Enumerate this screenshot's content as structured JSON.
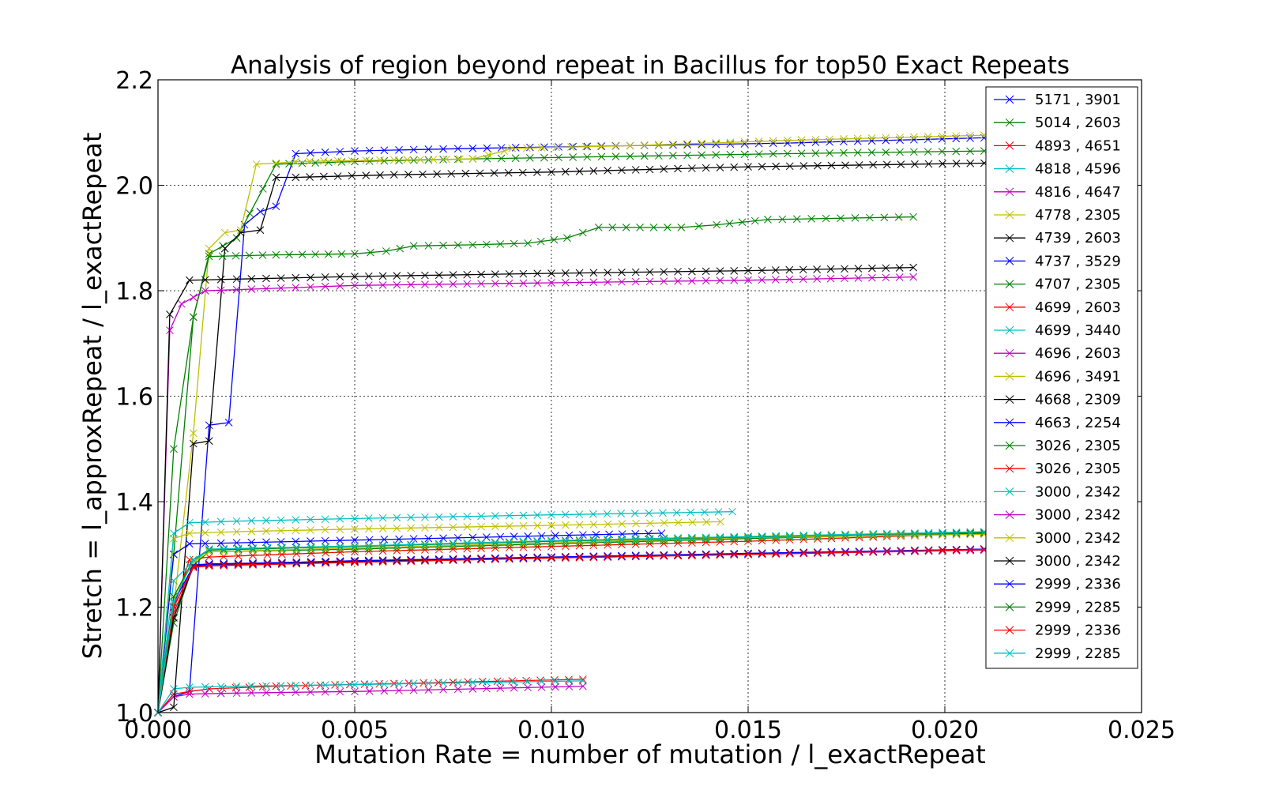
{
  "chart_data": {
    "type": "line",
    "title": "Analysis of region beyond repeat in Bacillus for top50 Exact Repeats",
    "xlabel": "Mutation Rate = number of mutation / l_exactRepeat",
    "ylabel": "Stretch =  l_approxRepeat / l_exactRepeat",
    "xlim": [
      0.0,
      0.025
    ],
    "ylim": [
      1.0,
      2.2
    ],
    "xticks": [
      "0.000",
      "0.005",
      "0.010",
      "0.015",
      "0.020",
      "0.025"
    ],
    "yticks": [
      "1.0",
      "1.2",
      "1.4",
      "1.6",
      "1.8",
      "2.0",
      "2.2"
    ],
    "grid": true,
    "legend_position": "right",
    "marker": "x",
    "series": [
      {
        "name": "5171 , 3901",
        "color": "#0000ff",
        "x": [
          0,
          0.0004,
          0.0008,
          0.0013,
          0.0018,
          0.0022,
          0.0026,
          0.003,
          0.0035,
          0.005,
          0.008,
          0.012,
          0.016,
          0.021
        ],
        "y": [
          1.0,
          1.03,
          1.04,
          1.545,
          1.55,
          1.925,
          1.95,
          1.96,
          2.06,
          2.065,
          2.07,
          2.075,
          2.08,
          2.09
        ]
      },
      {
        "name": "5014 , 2603",
        "color": "#008000",
        "x": [
          0,
          0.0004,
          0.0009,
          0.0013,
          0.002,
          0.003,
          0.005,
          0.008,
          0.012,
          0.016,
          0.021
        ],
        "y": [
          1.0,
          1.3,
          1.75,
          1.87,
          1.9,
          2.04,
          2.045,
          2.05,
          2.055,
          2.06,
          2.065
        ]
      },
      {
        "name": "4893 , 4651",
        "color": "#ff0000",
        "x": [
          0,
          0.0004,
          0.0008,
          0.0013,
          0.003,
          0.006,
          0.009,
          0.0108
        ],
        "y": [
          1.0,
          1.035,
          1.04,
          1.045,
          1.05,
          1.055,
          1.06,
          1.063
        ]
      },
      {
        "name": "4818 , 4596",
        "color": "#00bfbf",
        "x": [
          0,
          0.0004,
          0.0008,
          0.002,
          0.005,
          0.008,
          0.0108
        ],
        "y": [
          1.0,
          1.045,
          1.048,
          1.05,
          1.053,
          1.057,
          1.06
        ]
      },
      {
        "name": "4816 , 4647",
        "color": "#bf00bf",
        "x": [
          0,
          0.0004,
          0.0008,
          0.002,
          0.005,
          0.008,
          0.0108
        ],
        "y": [
          1.0,
          1.03,
          1.035,
          1.037,
          1.04,
          1.045,
          1.05
        ]
      },
      {
        "name": "4778 , 2305",
        "color": "#bfbf00",
        "x": [
          0,
          0.0004,
          0.0009,
          0.0013,
          0.0017,
          0.0021,
          0.0025,
          0.003,
          0.0035,
          0.006,
          0.008,
          0.0088,
          0.009,
          0.012,
          0.016,
          0.021
        ],
        "y": [
          1.0,
          1.2,
          1.53,
          1.88,
          1.91,
          1.915,
          2.04,
          2.042,
          2.045,
          2.048,
          2.05,
          2.065,
          2.07,
          2.075,
          2.085,
          2.095
        ]
      },
      {
        "name": "4739 , 2603",
        "color": "#000000",
        "x": [
          0,
          0.0004,
          0.0009,
          0.0013,
          0.0017,
          0.0021,
          0.0026,
          0.003,
          0.0035,
          0.006,
          0.01,
          0.015,
          0.021
        ],
        "y": [
          1.0,
          1.01,
          1.51,
          1.515,
          1.88,
          1.91,
          1.915,
          2.015,
          2.015,
          2.02,
          2.025,
          2.035,
          2.042
        ]
      },
      {
        "name": "4737 , 3529",
        "color": "#0000ff",
        "x": [
          0,
          0.0004,
          0.0008,
          0.002,
          0.005,
          0.008,
          0.0108,
          0.0128
        ],
        "y": [
          1.0,
          1.3,
          1.32,
          1.322,
          1.327,
          1.332,
          1.337,
          1.34
        ]
      },
      {
        "name": "4707 , 2305",
        "color": "#008000",
        "x": [
          0,
          0.0004,
          0.0009,
          0.0013,
          0.003,
          0.005,
          0.0058,
          0.0065,
          0.008,
          0.0094,
          0.0104,
          0.0112,
          0.0133,
          0.0142,
          0.0155,
          0.0192
        ],
        "y": [
          1.0,
          1.5,
          1.75,
          1.865,
          1.868,
          1.87,
          1.875,
          1.885,
          1.887,
          1.89,
          1.9,
          1.92,
          1.92,
          1.925,
          1.935,
          1.94
        ]
      },
      {
        "name": "4699 , 2603",
        "color": "#ff0000",
        "x": [
          0,
          0.0004,
          0.0008,
          0.0013,
          0.005,
          0.01,
          0.015,
          0.021
        ],
        "y": [
          1.0,
          1.2,
          1.29,
          1.295,
          1.305,
          1.315,
          1.325,
          1.34
        ]
      },
      {
        "name": "4699 , 3440",
        "color": "#00bfbf",
        "x": [
          0,
          0.0004,
          0.0008,
          0.0013,
          0.005,
          0.01,
          0.015,
          0.021
        ],
        "y": [
          1.0,
          1.25,
          1.28,
          1.31,
          1.315,
          1.325,
          1.333,
          1.342
        ]
      },
      {
        "name": "4696 , 2603",
        "color": "#bf00bf",
        "x": [
          0,
          0.0003,
          0.0006,
          0.0012,
          0.002,
          0.005,
          0.01,
          0.015,
          0.0192
        ],
        "y": [
          1.0,
          1.725,
          1.775,
          1.8,
          1.802,
          1.81,
          1.815,
          1.82,
          1.826
        ]
      },
      {
        "name": "4696 , 3491",
        "color": "#bfbf00",
        "x": [
          0,
          0.0004,
          0.0008,
          0.002,
          0.005,
          0.01,
          0.0143
        ],
        "y": [
          1.0,
          1.33,
          1.34,
          1.343,
          1.348,
          1.355,
          1.362
        ]
      },
      {
        "name": "4668 , 2309",
        "color": "#000000",
        "x": [
          0,
          0.0003,
          0.0008,
          0.002,
          0.005,
          0.01,
          0.015,
          0.0192
        ],
        "y": [
          1.0,
          1.755,
          1.82,
          1.822,
          1.827,
          1.833,
          1.838,
          1.844
        ]
      },
      {
        "name": "4663 , 2254",
        "color": "#0000ff",
        "x": [
          0,
          0.0004,
          0.0009,
          0.0013,
          0.005,
          0.01,
          0.015,
          0.021
        ],
        "y": [
          1.0,
          1.18,
          1.28,
          1.282,
          1.287,
          1.295,
          1.3,
          1.31
        ]
      },
      {
        "name": "3026 , 2305",
        "color": "#008000",
        "x": [
          0,
          0.0004,
          0.0009,
          0.0013,
          0.005,
          0.01,
          0.015,
          0.021
        ],
        "y": [
          1.0,
          1.17,
          1.28,
          1.305,
          1.31,
          1.32,
          1.33,
          1.34
        ]
      },
      {
        "name": "3026 , 2305",
        "color": "#ff0000",
        "x": [
          0,
          0.0004,
          0.0009,
          0.0013,
          0.005,
          0.01,
          0.015,
          0.021
        ],
        "y": [
          1.0,
          1.19,
          1.275,
          1.278,
          1.285,
          1.293,
          1.3,
          1.31
        ]
      },
      {
        "name": "3000 , 2342",
        "color": "#00bfbf",
        "x": [
          0,
          0.0004,
          0.0008,
          0.002,
          0.005,
          0.01,
          0.0146
        ],
        "y": [
          1.0,
          1.34,
          1.36,
          1.363,
          1.368,
          1.375,
          1.381
        ]
      },
      {
        "name": "3000 , 2342",
        "color": "#bf00bf",
        "x": [
          0,
          0.0004,
          0.0009,
          0.0013,
          0.005,
          0.01,
          0.015,
          0.021
        ],
        "y": [
          1.0,
          1.2,
          1.278,
          1.28,
          1.288,
          1.294,
          1.3,
          1.308
        ]
      },
      {
        "name": "3000 , 2342",
        "color": "#bfbf00",
        "x": [
          0,
          0.0004,
          0.0009,
          0.0013,
          0.005,
          0.01,
          0.015,
          0.021
        ],
        "y": [
          1.0,
          1.22,
          1.285,
          1.305,
          1.312,
          1.322,
          1.332,
          1.338
        ]
      },
      {
        "name": "3000 , 2342",
        "color": "#000000",
        "x": [
          0,
          0.0004,
          0.0009,
          0.0013,
          0.005,
          0.01,
          0.015,
          0.021
        ],
        "y": [
          1.0,
          1.18,
          1.278,
          1.28,
          1.286,
          1.294,
          1.301,
          1.31
        ]
      },
      {
        "name": "2999 , 2336",
        "color": "#0000ff",
        "x": [
          0,
          0.0004,
          0.0009,
          0.0013,
          0.005,
          0.01,
          0.015,
          0.021
        ],
        "y": [
          1.0,
          1.21,
          1.278,
          1.281,
          1.288,
          1.295,
          1.302,
          1.31
        ]
      },
      {
        "name": "2999 , 2285",
        "color": "#008000",
        "x": [
          0,
          0.0004,
          0.0009,
          0.0013,
          0.005,
          0.01,
          0.015,
          0.021
        ],
        "y": [
          1.0,
          1.22,
          1.29,
          1.308,
          1.315,
          1.325,
          1.333,
          1.342
        ]
      },
      {
        "name": "2999 , 2336",
        "color": "#ff0000",
        "x": [
          0,
          0.0004,
          0.0009,
          0.0013,
          0.005,
          0.01,
          0.015,
          0.021
        ],
        "y": [
          1.0,
          1.2,
          1.276,
          1.279,
          1.285,
          1.293,
          1.3,
          1.309
        ]
      },
      {
        "name": "2999 , 2285",
        "color": "#00bfbf",
        "x": [
          0,
          0.0004,
          0.0009,
          0.0013,
          0.005,
          0.01,
          0.015,
          0.021
        ],
        "y": [
          1.0,
          1.21,
          1.29,
          1.31,
          1.316,
          1.326,
          1.334,
          1.343
        ]
      }
    ]
  }
}
